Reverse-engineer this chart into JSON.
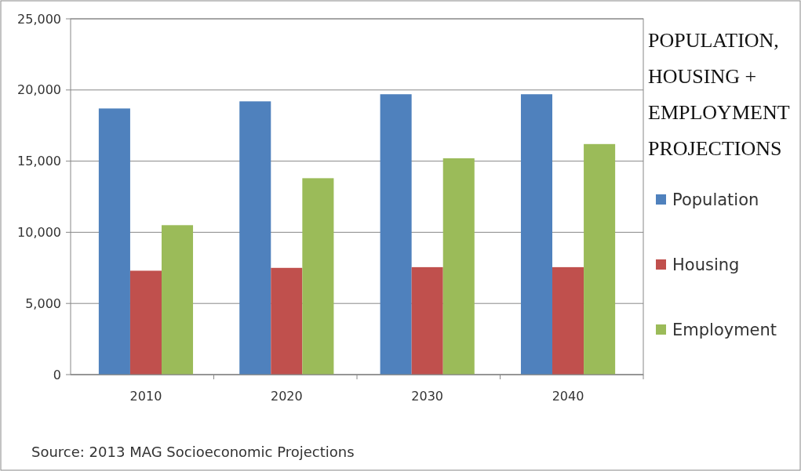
{
  "chart_data": {
    "type": "bar",
    "title": "POPULATION, HOUSING + EMPLOYMENT PROJECTIONS",
    "categories": [
      "2010",
      "2020",
      "2030",
      "2040"
    ],
    "series": [
      {
        "name": "Population",
        "color": "#4f81bd",
        "values": [
          18700,
          19200,
          19700,
          19700
        ]
      },
      {
        "name": "Housing",
        "color": "#c0504d",
        "values": [
          7300,
          7500,
          7550,
          7550
        ]
      },
      {
        "name": "Employment",
        "color": "#9bbb59",
        "values": [
          10500,
          13800,
          15200,
          16200
        ]
      }
    ],
    "ylim": [
      0,
      25000
    ],
    "yticks": [
      {
        "value": 0,
        "label": "0"
      },
      {
        "value": 5000,
        "label": "5,000"
      },
      {
        "value": 10000,
        "label": "10,000"
      },
      {
        "value": 15000,
        "label": "15,000"
      },
      {
        "value": 20000,
        "label": "20,000"
      },
      {
        "value": 25000,
        "label": "25,000"
      }
    ],
    "grid": "y",
    "legend": "right",
    "annotations": [
      "Source: 2013 MAG Socioeconomic Projections"
    ]
  }
}
